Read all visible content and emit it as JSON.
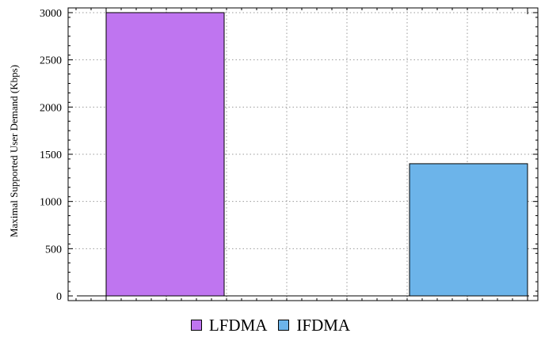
{
  "chart_data": {
    "type": "bar",
    "categories": [
      "LFDMA",
      "IFDMA"
    ],
    "series": [
      {
        "name": "LFDMA",
        "values": [
          3000,
          null
        ]
      },
      {
        "name": "IFDMA",
        "values": [
          null,
          1400
        ]
      }
    ],
    "values": [
      3000,
      1400
    ],
    "title": "",
    "xlabel": "",
    "ylabel": "Maximal Supported User Demand (Kbps)",
    "ylim": [
      -50,
      3050
    ],
    "yticks": [
      0,
      500,
      1000,
      1500,
      2000,
      2500,
      3000
    ],
    "grid": true,
    "legend_placement": "bottom-center",
    "colors": {
      "LFDMA": "#bf75f0",
      "IFDMA": "#6cb4ea"
    }
  },
  "legend": {
    "items": [
      {
        "label": "LFDMA",
        "color": "#bf75f0"
      },
      {
        "label": "IFDMA",
        "color": "#6cb4ea"
      }
    ]
  }
}
